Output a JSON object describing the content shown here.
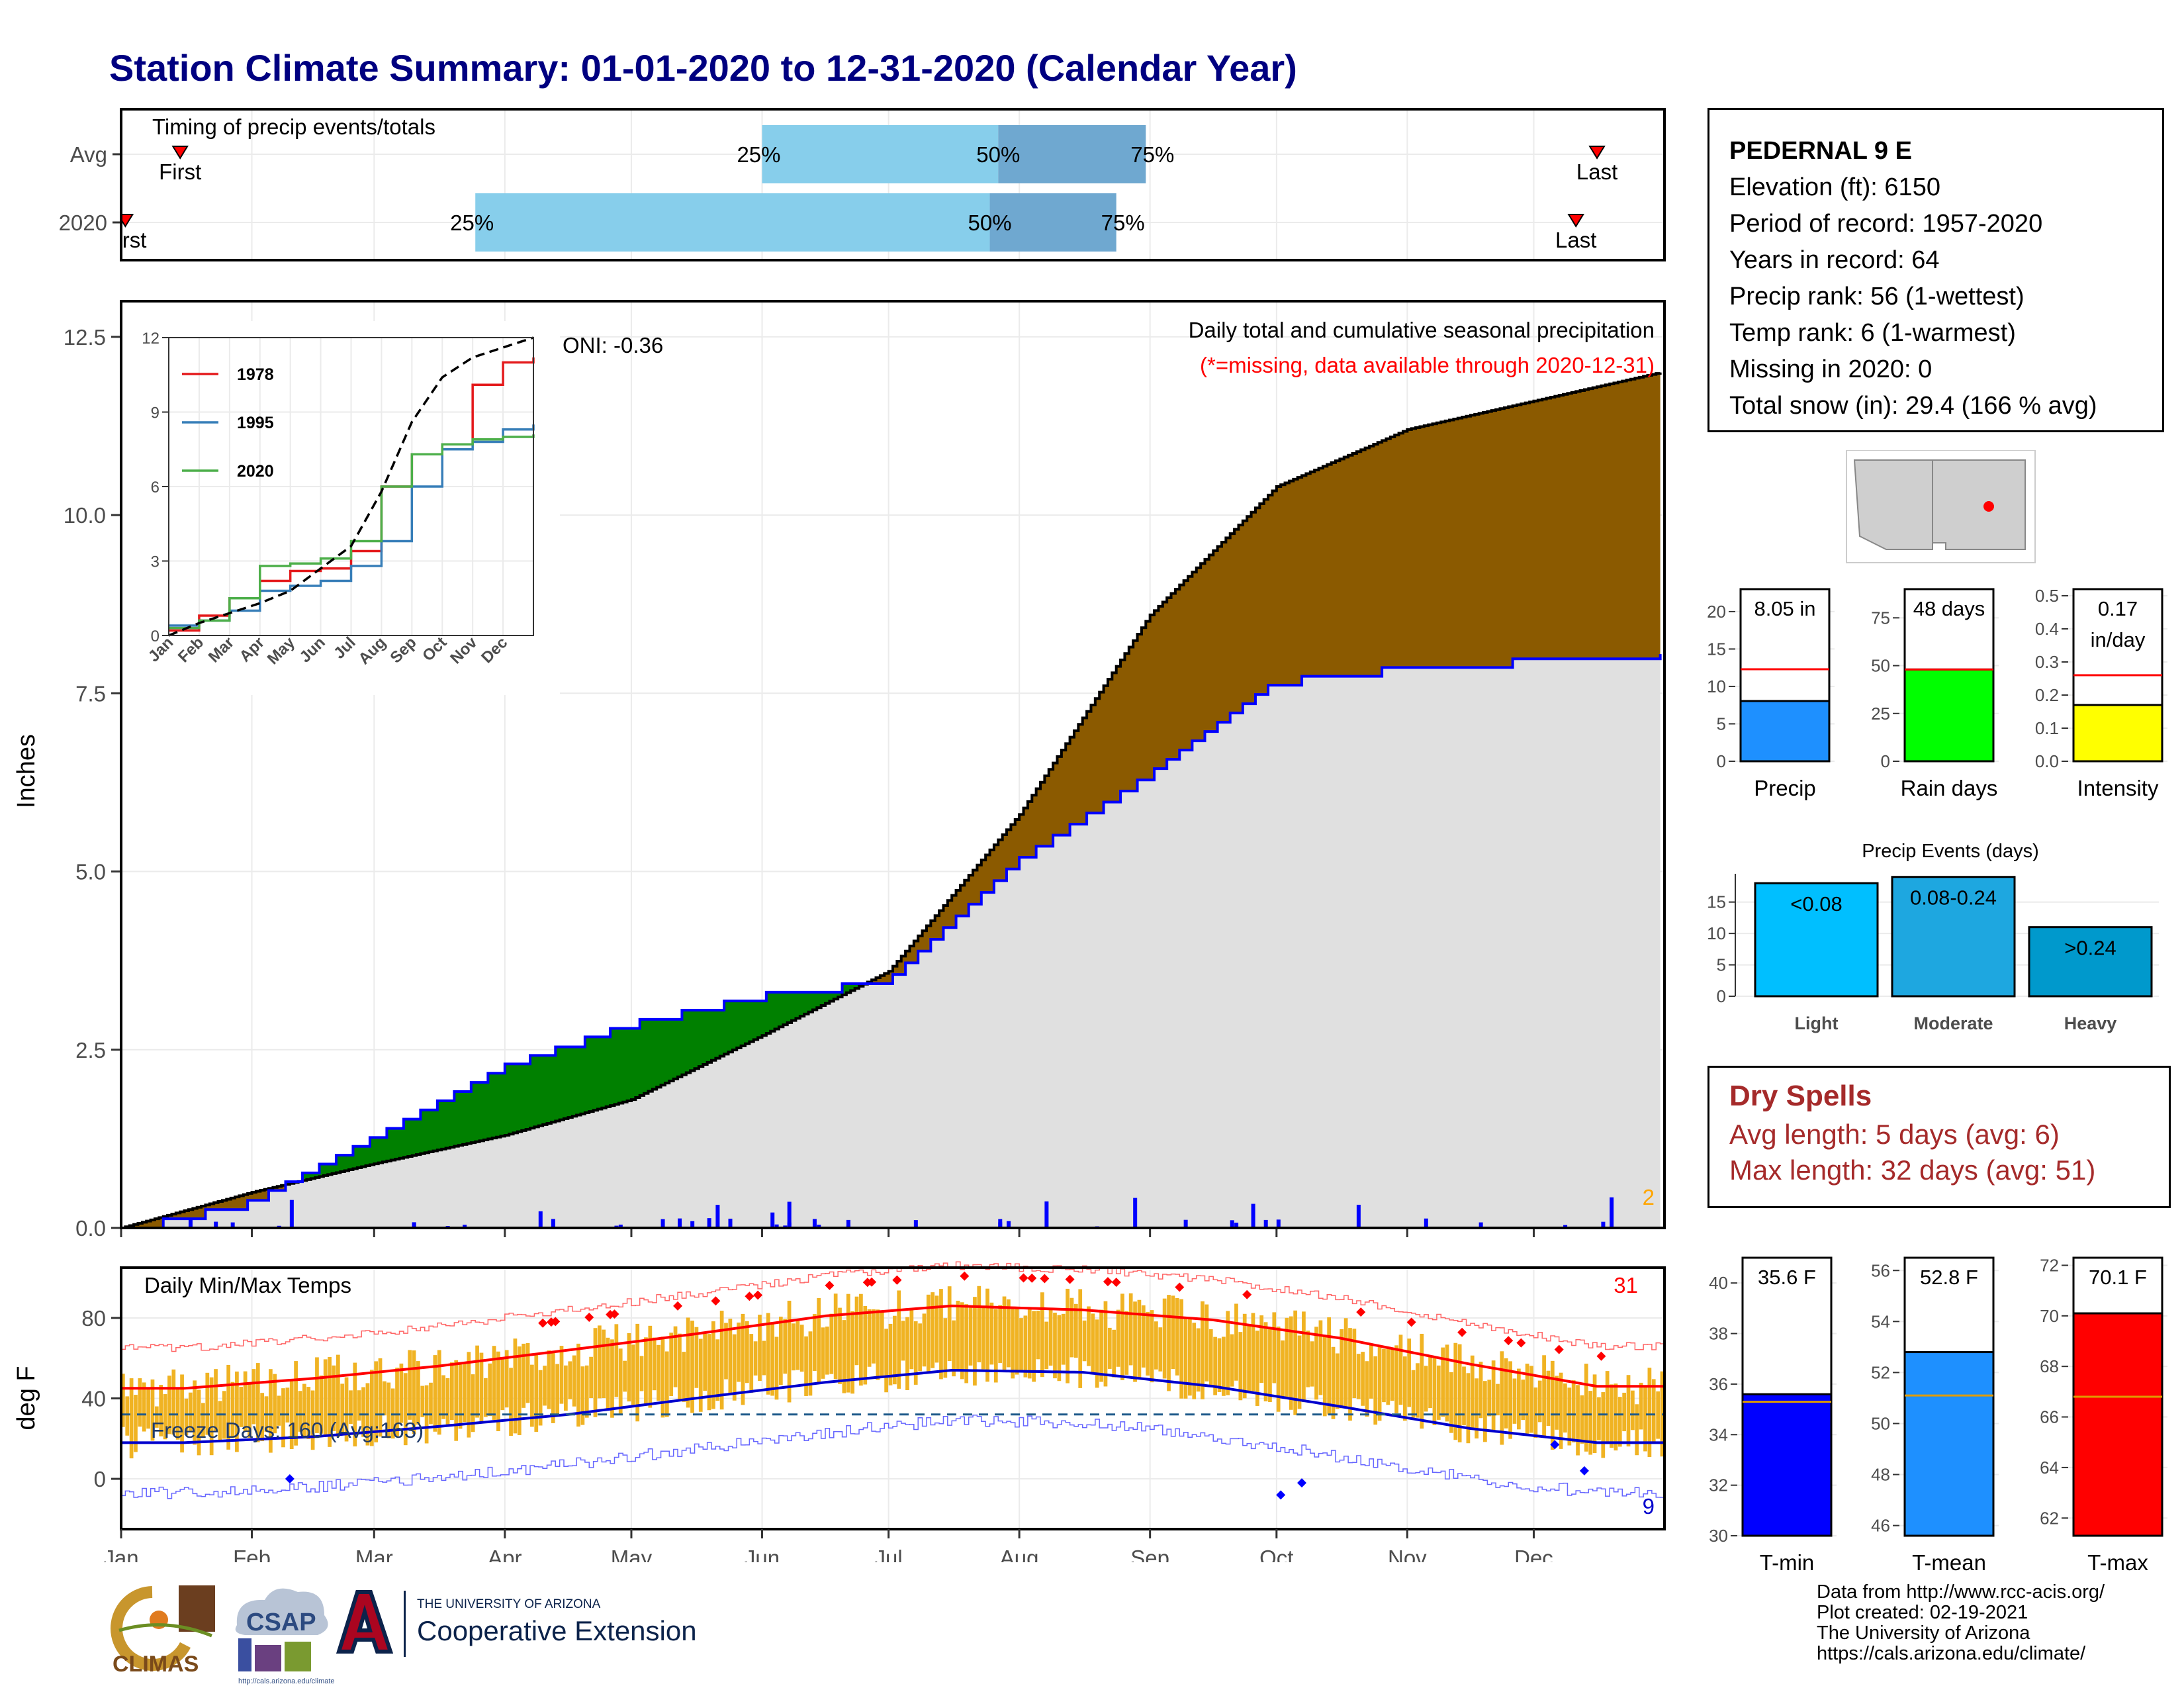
{
  "title": "Station Climate Summary: 01-01-2020 to 12-31-2020 (Calendar Year)",
  "colors": {
    "title": "#000080",
    "percentile_light": "#87ceeb",
    "percentile_dark": "#6fa8d0",
    "above_normal": "#8b5a00",
    "below_normal": "#008000",
    "normal_fill": "#e0e0e0",
    "observed_line": "#0000ff",
    "daily_precip": "#0000ff",
    "temp_bars": "#f0b323",
    "avg_max_line": "#ff0000",
    "avg_min_line": "#0000cd",
    "dry_spells": "#a52a2a"
  },
  "timing": {
    "title": "Timing of precip events/totals",
    "rows": [
      {
        "label": "Avg",
        "first_label": "First",
        "last_label": "Last",
        "first": "Jan 15",
        "p25": "Jun 1",
        "p50": "Jul 27",
        "p75": "Aug 31",
        "last": "Dec 16"
      },
      {
        "label": "2020",
        "first_label": "First",
        "last_label": "Last",
        "first": "Jan 2",
        "p25": "Mar 25",
        "p50": "Jul 25",
        "p75": "Aug 24",
        "last": "Dec 11"
      }
    ],
    "pct_labels": [
      "25%",
      "50%",
      "75%"
    ]
  },
  "months": [
    "Jan",
    "Feb",
    "Mar",
    "Apr",
    "May",
    "Jun",
    "Jul",
    "Aug",
    "Sep",
    "Oct",
    "Nov",
    "Dec"
  ],
  "precip_panel": {
    "ylabel": "Inches",
    "yticks": [
      "0.0",
      "2.5",
      "5.0",
      "7.5",
      "10.0",
      "12.5"
    ],
    "annotation": "Daily total and cumulative seasonal precipitation",
    "missing_note": "(*=missing, data available through 2020-12-31)",
    "oni": "ONI: -0.36",
    "count_label": "2"
  },
  "inset": {
    "yticks": [
      "0",
      "3",
      "6",
      "9",
      "12"
    ],
    "series": [
      {
        "name": "1978",
        "color": "#e41a1c"
      },
      {
        "name": "1995",
        "color": "#377eb8"
      },
      {
        "name": "2020",
        "color": "#4daf4a"
      }
    ]
  },
  "temp_panel": {
    "title": "Daily Min/Max Temps",
    "ylabel": "deg F",
    "yticks": [
      "0",
      "40",
      "80"
    ],
    "freeze_label": "Freeze Days: 160 (Avg:163)",
    "hot_count": "31",
    "cold_count": "9"
  },
  "station": {
    "name": "PEDERNAL 9 E",
    "lines": [
      "Elevation (ft): 6150",
      "Period of record: 1957-2020",
      "Years in record: 64",
      "Precip rank: 56 (1-wettest)",
      "Temp rank: 6 (1-warmest)",
      "Missing in 2020: 0",
      "Total snow (in): 29.4 (166 % avg)"
    ]
  },
  "mini_bars": [
    {
      "label": "Precip",
      "value_text": "8.05 in",
      "yticks": [
        "0",
        "5",
        "10",
        "15",
        "20"
      ],
      "color": "#1e90ff"
    },
    {
      "label": "Rain days",
      "value_text": "48 days",
      "yticks": [
        "0",
        "25",
        "50",
        "75"
      ],
      "color": "#00ff00"
    },
    {
      "label": "Intensity",
      "value_text": "0.17",
      "value_text2": "in/day",
      "yticks": [
        "0.0",
        "0.1",
        "0.2",
        "0.3",
        "0.4",
        "0.5"
      ],
      "color": "#ffff00"
    }
  ],
  "events": {
    "title": "Precip Events (days)",
    "yticks": [
      "0",
      "5",
      "10",
      "15"
    ],
    "bars": [
      {
        "label": "Light",
        "text": "<0.08",
        "color": "#00bfff"
      },
      {
        "label": "Moderate",
        "text": "0.08-0.24",
        "color": "#1ea7e0"
      },
      {
        "label": "Heavy",
        "text": ">0.24",
        "color": "#0099cc"
      }
    ]
  },
  "dry_spells": {
    "title": "Dry Spells",
    "lines": [
      "Avg length: 5 days (avg: 6)",
      "Max length: 32 days (avg: 51)"
    ]
  },
  "temp_bars": [
    {
      "label": "T-min",
      "value_text": "35.6 F",
      "yticks": [
        "30",
        "32",
        "34",
        "36",
        "38",
        "40"
      ],
      "color": "#0000ff"
    },
    {
      "label": "T-mean",
      "value_text": "52.8 F",
      "yticks": [
        "46",
        "48",
        "50",
        "52",
        "54",
        "56"
      ],
      "color": "#1e90ff"
    },
    {
      "label": "T-max",
      "value_text": "70.1 F",
      "yticks": [
        "62",
        "64",
        "66",
        "68",
        "70",
        "72"
      ],
      "color": "#ff0000"
    }
  ],
  "credits": [
    "Data from http://www.rcc-acis.org/",
    "Plot created: 02-19-2021",
    "The University of Arizona",
    "https://cals.arizona.edu/climate/"
  ],
  "logos": {
    "climas": "CLIMAS",
    "csap": "CSAP",
    "csap_url": "http://cals.arizona.edu/climate",
    "ua_small": "THE UNIVERSITY OF ARIZONA",
    "ua_big": "Cooperative Extension"
  },
  "chart_data": [
    {
      "type": "area",
      "title": "Daily total and cumulative seasonal precipitation",
      "ylabel": "Inches",
      "ylim": [
        0,
        13
      ],
      "x": [
        "Jan 1",
        "Feb 1",
        "Mar 1",
        "Apr 1",
        "May 1",
        "Jun 1",
        "Jul 1",
        "Aug 1",
        "Sep 1",
        "Oct 1",
        "Nov 1",
        "Dec 1",
        "Dec 31"
      ],
      "series": [
        {
          "name": "normal",
          "values": [
            0.0,
            0.5,
            0.9,
            1.3,
            1.8,
            2.7,
            3.6,
            5.8,
            8.6,
            10.4,
            11.2,
            11.6,
            12.0
          ]
        },
        {
          "name": "2020",
          "values": [
            0.0,
            0.4,
            1.3,
            2.3,
            2.9,
            3.3,
            3.5,
            5.2,
            6.4,
            7.7,
            7.9,
            8.0,
            8.05
          ]
        }
      ]
    },
    {
      "type": "line",
      "ylim": [
        0,
        12
      ],
      "x": [
        "Jan",
        "Feb",
        "Mar",
        "Apr",
        "May",
        "Jun",
        "Jul",
        "Aug",
        "Sep",
        "Oct",
        "Nov",
        "Dec",
        "Dec 31"
      ],
      "series": [
        {
          "name": "1978",
          "values": [
            0.2,
            0.8,
            1.5,
            2.2,
            2.6,
            2.7,
            3.4,
            6.0,
            7.3,
            7.7,
            10.1,
            11.0,
            11.2
          ]
        },
        {
          "name": "1995",
          "values": [
            0.4,
            0.6,
            1.0,
            1.8,
            2.0,
            2.2,
            2.8,
            3.8,
            6.0,
            7.5,
            7.8,
            8.3,
            8.5
          ]
        },
        {
          "name": "2020",
          "values": [
            0.3,
            0.6,
            1.5,
            2.8,
            2.9,
            3.1,
            3.8,
            6.0,
            7.3,
            7.7,
            7.9,
            8.0,
            8.1
          ]
        },
        {
          "name": "normal",
          "values": [
            0.0,
            0.5,
            0.9,
            1.3,
            1.8,
            2.7,
            3.6,
            5.8,
            8.6,
            10.4,
            11.2,
            11.6,
            12.0
          ]
        }
      ]
    },
    {
      "type": "line",
      "title": "Daily Min/Max Temps",
      "ylabel": "deg F",
      "ylim": [
        -25,
        105
      ],
      "x": [
        "Jan",
        "Feb",
        "Mar",
        "Apr",
        "May",
        "Jun",
        "Jul",
        "Aug",
        "Sep",
        "Oct",
        "Nov",
        "Dec"
      ],
      "series": [
        {
          "name": "avg max",
          "values": [
            45,
            50,
            56,
            64,
            72,
            81,
            86,
            84,
            79,
            70,
            57,
            46
          ]
        },
        {
          "name": "avg min",
          "values": [
            18,
            21,
            26,
            32,
            40,
            48,
            54,
            53,
            46,
            36,
            25,
            18
          ]
        }
      ]
    },
    {
      "type": "bar",
      "categories": [
        "Precip"
      ],
      "values": [
        8.05
      ],
      "ylim": [
        0,
        23
      ],
      "reference": 12.3
    },
    {
      "type": "bar",
      "categories": [
        "Rain days"
      ],
      "values": [
        48
      ],
      "ylim": [
        0,
        90
      ],
      "reference": 48
    },
    {
      "type": "bar",
      "categories": [
        "Intensity"
      ],
      "values": [
        0.17
      ],
      "ylim": [
        0,
        0.52
      ],
      "reference": 0.26
    },
    {
      "type": "bar",
      "title": "Precip Events (days)",
      "categories": [
        "Light",
        "Moderate",
        "Heavy"
      ],
      "values": [
        18,
        19,
        11
      ],
      "ylim": [
        0,
        19.5
      ]
    },
    {
      "type": "bar",
      "categories": [
        "T-min"
      ],
      "values": [
        35.6
      ],
      "ylim": [
        30,
        41
      ],
      "reference": 35.3
    },
    {
      "type": "bar",
      "categories": [
        "T-mean"
      ],
      "values": [
        52.8
      ],
      "ylim": [
        45.6,
        56.5
      ],
      "reference": 51.1
    },
    {
      "type": "bar",
      "categories": [
        "T-max"
      ],
      "values": [
        70.1
      ],
      "ylim": [
        61.3,
        72.3
      ],
      "reference": 66.8
    }
  ]
}
